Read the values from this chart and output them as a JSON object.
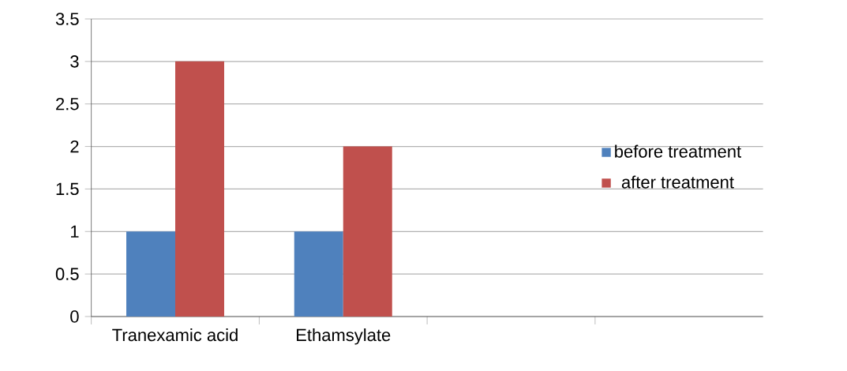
{
  "chart_data": {
    "type": "bar",
    "categories": [
      "Tranexamic acid",
      "Ethamsylate",
      null,
      null
    ],
    "series": [
      {
        "name": "before treatment",
        "color": "#4f81bd",
        "values": [
          1,
          1,
          null,
          null
        ]
      },
      {
        "name": "after treatment",
        "color": "#c0504d",
        "values": [
          3,
          2,
          null,
          null
        ]
      }
    ],
    "ylim": [
      0,
      3.5
    ],
    "yticks": [
      0,
      0.5,
      1,
      1.5,
      2,
      2.5,
      3,
      3.5
    ],
    "grid": "y",
    "legend": "right"
  }
}
